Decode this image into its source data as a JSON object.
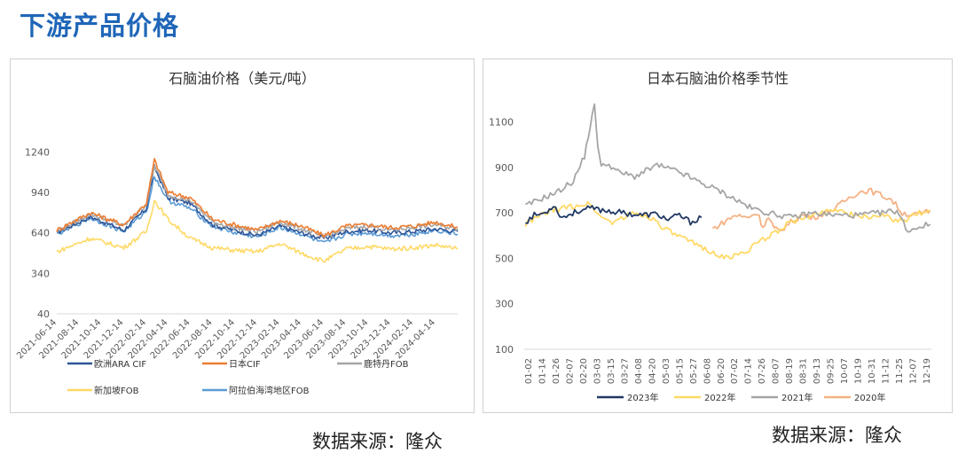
{
  "page": {
    "title": "下游产品价格"
  },
  "sources": {
    "left": "数据来源：隆众",
    "right": "数据来源：隆众"
  },
  "chart_data": [
    {
      "type": "line",
      "title": "石脑油价格（美元/吨）",
      "ylim": [
        40,
        1400
      ],
      "yticks": [
        40,
        340,
        640,
        940,
        1240
      ],
      "x_start": "2021-06-14",
      "x_end": "2024-06-14",
      "xticks": [
        "2021-06-14",
        "2021-08-14",
        "2021-10-14",
        "2021-12-14",
        "2022-02-14",
        "2022-04-14",
        "2022-06-14",
        "2022-08-14",
        "2022-10-14",
        "2022-12-14",
        "2023-02-14",
        "2023-04-14",
        "2023-06-14",
        "2023-08-14",
        "2023-10-14",
        "2023-12-14",
        "2024-02-14",
        "2024-04-14"
      ],
      "grid": false,
      "legend": "bottom",
      "series_dates": [
        "2021-06-14",
        "2021-09-14",
        "2021-12-14",
        "2022-02-14",
        "2022-03-08",
        "2022-04-14",
        "2022-06-14",
        "2022-08-14",
        "2022-10-14",
        "2022-12-14",
        "2023-02-14",
        "2023-04-14",
        "2023-06-14",
        "2023-08-14",
        "2023-10-14",
        "2023-12-14",
        "2024-02-14",
        "2024-04-14",
        "2024-06-14"
      ],
      "series": [
        {
          "name": "欧洲ARA CIF",
          "color": "#2f5597",
          "values": [
            640,
            760,
            660,
            820,
            1130,
            900,
            860,
            700,
            660,
            620,
            690,
            640,
            600,
            650,
            660,
            640,
            650,
            670,
            650
          ]
        },
        {
          "name": "日本CIF",
          "color": "#ed7d31",
          "values": [
            660,
            790,
            700,
            860,
            1180,
            940,
            900,
            740,
            700,
            660,
            730,
            690,
            620,
            690,
            700,
            680,
            690,
            720,
            680
          ]
        },
        {
          "name": "鹿特丹FOB",
          "color": "#a5a5a5",
          "values": [
            650,
            780,
            690,
            850,
            1140,
            920,
            880,
            720,
            680,
            650,
            720,
            670,
            610,
            670,
            690,
            660,
            680,
            700,
            670
          ]
        },
        {
          "name": "新加坡FOB",
          "color": "#ffd966",
          "values": [
            500,
            600,
            530,
            650,
            880,
            740,
            600,
            530,
            510,
            500,
            560,
            490,
            430,
            520,
            540,
            520,
            530,
            550,
            520
          ]
        },
        {
          "name": "阿拉伯海湾地区FOB",
          "color": "#5b9bd5",
          "values": [
            630,
            750,
            650,
            800,
            1060,
            880,
            820,
            690,
            640,
            610,
            680,
            630,
            560,
            630,
            640,
            620,
            630,
            660,
            630
          ]
        }
      ]
    },
    {
      "type": "line",
      "title": "日本石脑油价格季节性",
      "ylim": [
        100,
        1200
      ],
      "yticks": [
        100,
        300,
        500,
        700,
        900,
        1100
      ],
      "xticks": [
        "01-02",
        "01-14",
        "01-26",
        "02-07",
        "02-20",
        "03-03",
        "03-15",
        "03-27",
        "04-08",
        "04-20",
        "05-03",
        "05-15",
        "05-27",
        "06-08",
        "06-20",
        "07-02",
        "07-14",
        "07-26",
        "08-07",
        "08-19",
        "08-31",
        "09-13",
        "09-25",
        "10-07",
        "10-19",
        "10-31",
        "11-12",
        "11-25",
        "12-07",
        "12-19"
      ],
      "x_days": [
        1,
        366
      ],
      "grid": false,
      "legend": "bottom",
      "series": [
        {
          "name": "2023年",
          "color": "#203864",
          "days": [
            2,
            10,
            20,
            27,
            35,
            50,
            60,
            75,
            90,
            105,
            120,
            130,
            140,
            150,
            160
          ],
          "values": [
            660,
            690,
            700,
            735,
            680,
            710,
            720,
            710,
            700,
            690,
            695,
            670,
            690,
            660,
            680
          ]
        },
        {
          "name": "2022年",
          "color": "#ffd966",
          "days": [
            2,
            20,
            35,
            50,
            60,
            70,
            80,
            100,
            115,
            130,
            150,
            165,
            180,
            195,
            215,
            240,
            260,
            280,
            300,
            320,
            340,
            355,
            365
          ],
          "values": [
            650,
            700,
            720,
            735,
            740,
            680,
            660,
            700,
            680,
            620,
            570,
            540,
            500,
            520,
            580,
            660,
            690,
            720,
            680,
            690,
            660,
            700,
            710
          ]
        },
        {
          "name": "2021年",
          "color": "#a5a5a5",
          "days": [
            2,
            15,
            30,
            45,
            55,
            60,
            64,
            67,
            70,
            75,
            85,
            100,
            120,
            140,
            160,
            175,
            190,
            205,
            220,
            240,
            260,
            280,
            300,
            320,
            335,
            345,
            355,
            365
          ],
          "values": [
            730,
            760,
            790,
            840,
            950,
            1080,
            1170,
            1000,
            900,
            920,
            880,
            860,
            910,
            880,
            830,
            800,
            760,
            720,
            700,
            680,
            700,
            690,
            690,
            700,
            710,
            620,
            640,
            650
          ]
        },
        {
          "name": "2020年",
          "color": "#f4b183",
          "days": [
            170,
            180,
            190,
            200,
            210,
            215,
            220,
            225,
            230,
            240,
            250,
            260,
            270,
            280,
            290,
            300,
            310,
            320,
            330,
            340,
            350,
            360,
            365
          ],
          "values": [
            630,
            660,
            690,
            680,
            700,
            640,
            680,
            630,
            620,
            660,
            690,
            680,
            700,
            720,
            760,
            790,
            800,
            780,
            760,
            700,
            690,
            700,
            710
          ]
        }
      ]
    }
  ]
}
